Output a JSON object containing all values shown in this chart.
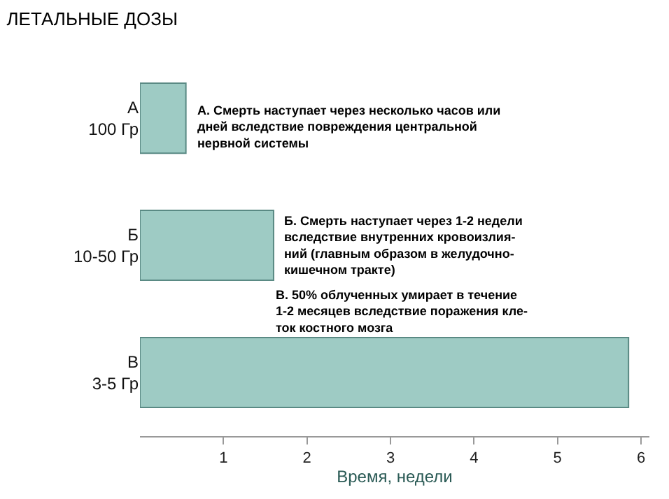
{
  "chart_data": {
    "type": "bar",
    "orientation": "horizontal",
    "title": "ЛЕТАЛЬНЫЕ ДОЗЫ",
    "xlabel": "Время, недели",
    "categories": [
      "А\n100 Гр",
      "Б\n10-50 Гр",
      "В\n3-5 Гр"
    ],
    "values": [
      0.55,
      1.6,
      5.85
    ],
    "color": "#9ecbc4",
    "xlim": [
      0,
      6.1
    ],
    "xticks": [
      1,
      2,
      3,
      4,
      5,
      6
    ],
    "legend": false,
    "annotations": [
      "А. Смерть наступает через несколько часов или\nдней вследствие повреждения центральной\nнервной системы",
      "Б. Смерть наступает через 1-2 недели\nвследствие внутренних кровоизлия-\nний (главным образом в желудочно-\nкишечном тракте)",
      "В. 50% облученных умирает в течение\n1-2 месяцев вследствие поражения кле-\nток костного мозга"
    ]
  }
}
